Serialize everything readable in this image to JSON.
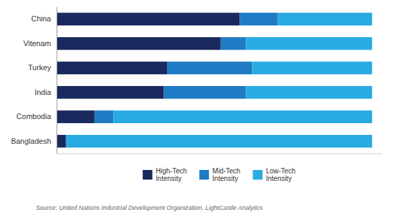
{
  "chart_data": {
    "type": "bar",
    "orientation": "horizontal",
    "stacked": true,
    "categories": [
      "China",
      "Vitenam",
      "Turkey",
      "India",
      "Combodia",
      "Bangladesh"
    ],
    "series": [
      {
        "name": "High-Tech\nIntensity",
        "color": "#1b2a5e",
        "values": [
          58,
          52,
          35,
          34,
          12,
          3
        ]
      },
      {
        "name": "Mid-Tech\nIntensity",
        "color": "#1e7bc4",
        "values": [
          12,
          8,
          27,
          26,
          6,
          0
        ]
      },
      {
        "name": "Low-Tech\nIntensity",
        "color": "#29abe2",
        "values": [
          30,
          40,
          38,
          40,
          82,
          97
        ]
      }
    ],
    "xlim": [
      0,
      103
    ],
    "xticks": [],
    "tick_labels": "y",
    "grid": false,
    "legend": "bottom",
    "annotations": [
      "Source: United Nations Industrial Development Organization, LightCastle Analytics"
    ]
  }
}
